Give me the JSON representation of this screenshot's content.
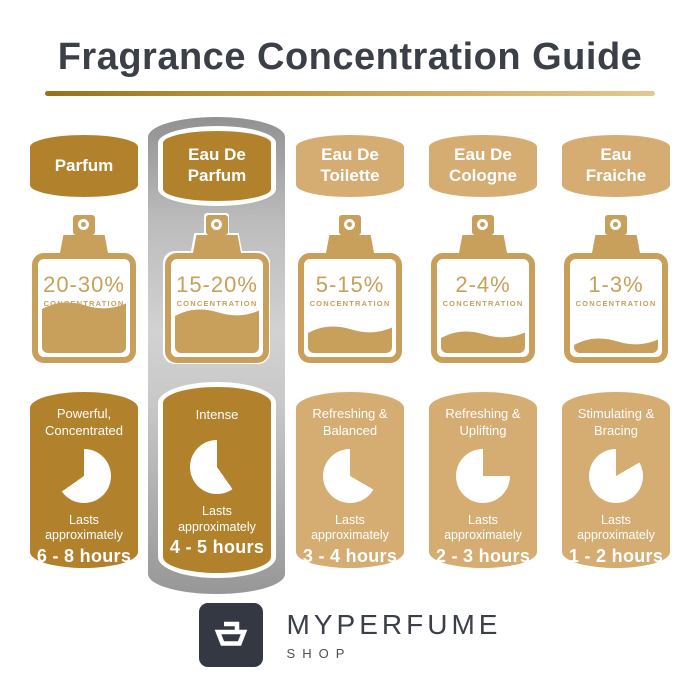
{
  "title": "Fragrance Concentration Guide",
  "labels": {
    "concentration_caption": "CONCENTRATION",
    "lasts_caption": "Lasts approximately"
  },
  "colors": {
    "dark_gold": "#b2812c",
    "light_gold": "#d5ac72",
    "bottle_gold": "#c89f5b",
    "title_text": "#3b3f47",
    "highlight_silver": "#bcbcbc",
    "logo_background": "#343843",
    "underline_gradient_start": "#96711d",
    "underline_gradient_end": "#e4c88f"
  },
  "columns": [
    {
      "name": "Parfum",
      "concentration": "20-30%",
      "fill_pct": 45,
      "highlighted": false,
      "clock": {
        "cut_from_deg": 235,
        "cut_to_deg": 360
      },
      "card": {
        "profile": "Powerful, Concentrated",
        "duration": "6 - 8 hours"
      }
    },
    {
      "name": "Eau De Parfum",
      "concentration": "15-20%",
      "fill_pct": 38,
      "highlighted": true,
      "clock": {
        "cut_from_deg": 0,
        "cut_to_deg": 145
      },
      "card": {
        "profile": "Intense",
        "duration": "4 - 5 hours"
      }
    },
    {
      "name": "Eau De Toilette",
      "concentration": "5-15%",
      "fill_pct": 20,
      "highlighted": false,
      "clock": {
        "cut_from_deg": 0,
        "cut_to_deg": 120
      },
      "card": {
        "profile": "Refreshing & Balanced",
        "duration": "3 - 4 hours"
      }
    },
    {
      "name": "Eau De Cologne",
      "concentration": "2-4%",
      "fill_pct": 15,
      "highlighted": false,
      "clock": {
        "cut_from_deg": 0,
        "cut_to_deg": 90
      },
      "card": {
        "profile": "Refreshing & Uplifting",
        "duration": "2 - 3 hours"
      }
    },
    {
      "name": "Eau Fraiche",
      "concentration": "1-3%",
      "fill_pct": 8,
      "highlighted": false,
      "clock": {
        "cut_from_deg": 0,
        "cut_to_deg": 60
      },
      "card": {
        "profile": "Stimulating & Bracing",
        "duration": "1 - 2 hours"
      }
    }
  ],
  "footer": {
    "brand": "MYPERFUME",
    "brand_sub": "SHOP"
  }
}
